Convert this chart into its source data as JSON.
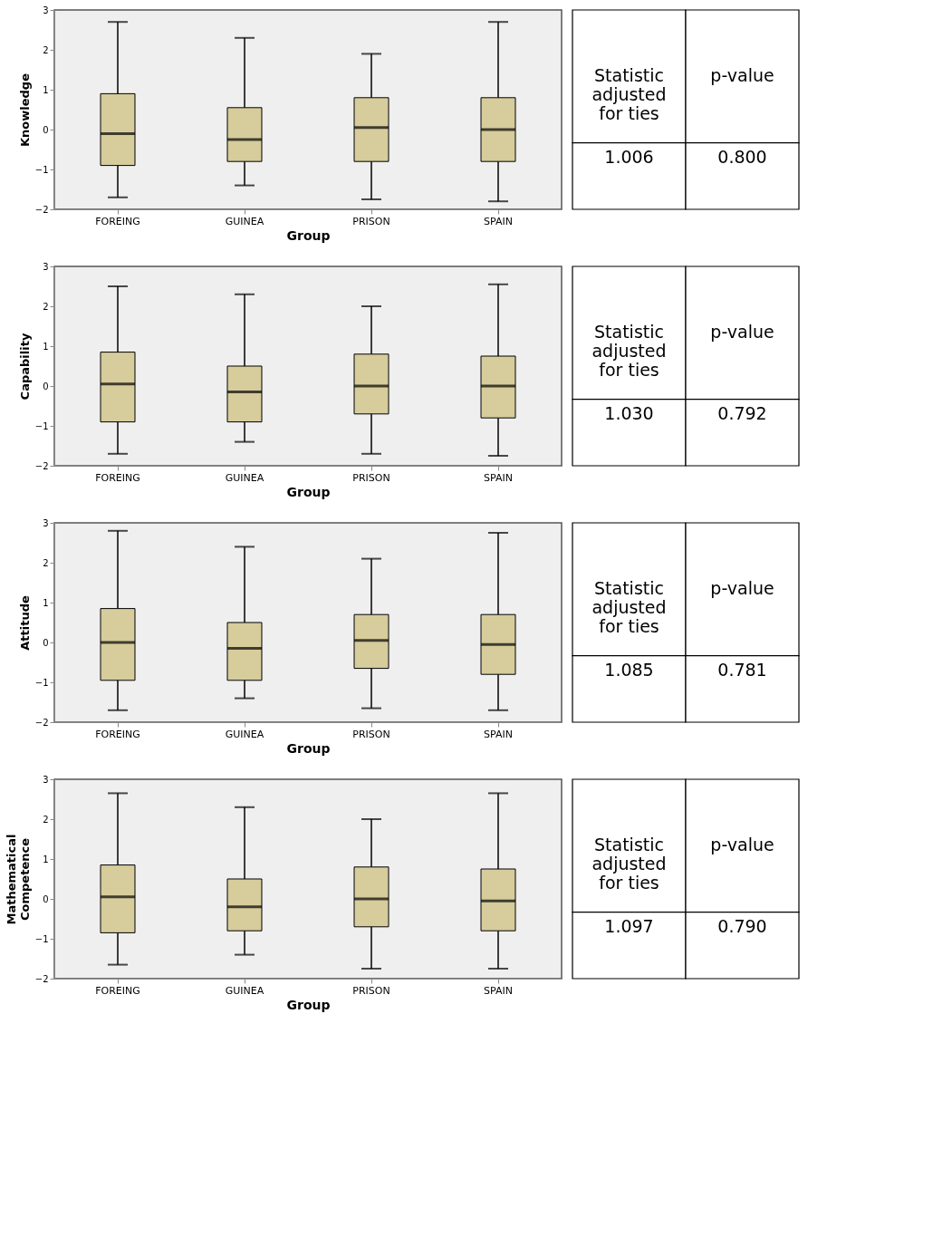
{
  "chart_data": [
    {
      "type": "box",
      "ylabel": "Knowledge",
      "xlabel": "Group",
      "categories": [
        "FOREING",
        "GUINEA",
        "PRISON",
        "SPAIN"
      ],
      "color": "#d6cc9c",
      "ylim": [
        -2,
        3
      ],
      "yticks": [
        -2,
        -1,
        0,
        1,
        2,
        3
      ],
      "grid": false,
      "boxes": [
        {
          "low": -1.7,
          "q1": -0.9,
          "median": -0.1,
          "q3": 0.9,
          "high": 2.7
        },
        {
          "low": -1.4,
          "q1": -0.8,
          "median": -0.25,
          "q3": 0.55,
          "high": 2.3
        },
        {
          "low": -1.75,
          "q1": -0.8,
          "median": 0.05,
          "q3": 0.8,
          "high": 1.9
        },
        {
          "low": -1.8,
          "q1": -0.8,
          "median": 0.0,
          "q3": 0.8,
          "high": 2.7
        }
      ]
    },
    {
      "type": "other",
      "annotations": [
        "Statistic adjusted for ties",
        "p-value",
        "1.006",
        "0.800"
      ]
    },
    {
      "type": "box",
      "ylabel": "Capability",
      "xlabel": "Group",
      "categories": [
        "FOREING",
        "GUINEA",
        "PRISON",
        "SPAIN"
      ],
      "color": "#d6cc9c",
      "ylim": [
        -2,
        3
      ],
      "yticks": [
        -2,
        -1,
        0,
        1,
        2,
        3
      ],
      "grid": false,
      "boxes": [
        {
          "low": -1.7,
          "q1": -0.9,
          "median": 0.05,
          "q3": 0.85,
          "high": 2.5
        },
        {
          "low": -1.4,
          "q1": -0.9,
          "median": -0.15,
          "q3": 0.5,
          "high": 2.3
        },
        {
          "low": -1.7,
          "q1": -0.7,
          "median": 0.0,
          "q3": 0.8,
          "high": 2.0
        },
        {
          "low": -1.75,
          "q1": -0.8,
          "median": 0.0,
          "q3": 0.75,
          "high": 2.55
        }
      ]
    },
    {
      "type": "other",
      "annotations": [
        "Statistic adjusted for ties",
        "p-value",
        "1.030",
        "0.792"
      ]
    },
    {
      "type": "box",
      "ylabel": "Attitude",
      "xlabel": "Group",
      "categories": [
        "FOREING",
        "GUINEA",
        "PRISON",
        "SPAIN"
      ],
      "color": "#d6cc9c",
      "ylim": [
        -2,
        3
      ],
      "yticks": [
        -2,
        -1,
        0,
        1,
        2,
        3
      ],
      "grid": false,
      "boxes": [
        {
          "low": -1.7,
          "q1": -0.95,
          "median": 0.0,
          "q3": 0.85,
          "high": 2.8
        },
        {
          "low": -1.4,
          "q1": -0.95,
          "median": -0.15,
          "q3": 0.5,
          "high": 2.4
        },
        {
          "low": -1.65,
          "q1": -0.65,
          "median": 0.05,
          "q3": 0.7,
          "high": 2.1
        },
        {
          "low": -1.7,
          "q1": -0.8,
          "median": -0.05,
          "q3": 0.7,
          "high": 2.75
        }
      ]
    },
    {
      "type": "other",
      "annotations": [
        "Statistic adjusted for ties",
        "p-value",
        "1.085",
        "0.781"
      ]
    },
    {
      "type": "box",
      "ylabel": "Mathematical Competence",
      "xlabel": "Group",
      "categories": [
        "FOREING",
        "GUINEA",
        "PRISON",
        "SPAIN"
      ],
      "color": "#d6cc9c",
      "ylim": [
        -2,
        3
      ],
      "yticks": [
        -2,
        -1,
        0,
        1,
        2,
        3
      ],
      "grid": false,
      "boxes": [
        {
          "low": -1.65,
          "q1": -0.85,
          "median": 0.05,
          "q3": 0.85,
          "high": 2.65
        },
        {
          "low": -1.4,
          "q1": -0.8,
          "median": -0.2,
          "q3": 0.5,
          "high": 2.3
        },
        {
          "low": -1.75,
          "q1": -0.7,
          "median": 0.0,
          "q3": 0.8,
          "high": 2.0
        },
        {
          "low": -1.75,
          "q1": -0.8,
          "median": -0.05,
          "q3": 0.75,
          "high": 2.65
        }
      ]
    },
    {
      "type": "other",
      "annotations": [
        "Statistic adjusted for ties",
        "p-value",
        "1.097",
        "0.790"
      ]
    }
  ]
}
